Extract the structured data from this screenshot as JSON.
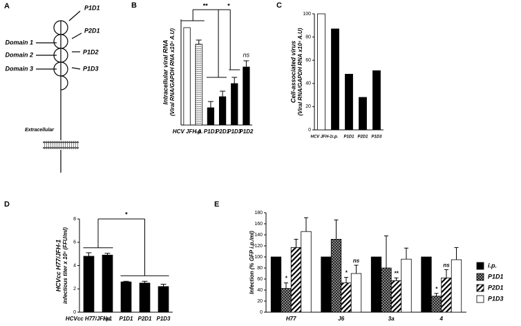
{
  "diagram": {
    "panel": "A",
    "receptors": [
      "P1D1",
      "P2D1",
      "P1D2",
      "P1D3"
    ],
    "domains": [
      "Domain 1",
      "Domain 2",
      "Domain 3"
    ],
    "membrane_label": "Extracellular"
  },
  "chart_data": [
    {
      "type": "bar",
      "panel": "B",
      "ylabel": [
        "Intracellular viral RNA",
        "(Viral RNA/GAPDH RNA x10⁴ A.U)"
      ],
      "categories": [
        "HCV JFH-1",
        "i.p.",
        "P1D1",
        "P2D1",
        "P1D3",
        "P1D2"
      ],
      "values": [
        141,
        117,
        25,
        41,
        60,
        84
      ],
      "errors": [
        0,
        6,
        9,
        8,
        9,
        9
      ],
      "colors": [
        "#ffffff",
        "#ffffff",
        "#000000",
        "#000000",
        "#000000",
        "#000000"
      ],
      "patterns": [
        null,
        "dots",
        null,
        null,
        null,
        null
      ],
      "ylim": [
        0,
        153
      ],
      "annotations": [
        "**",
        "*",
        "ns"
      ]
    },
    {
      "type": "bar",
      "panel": "C",
      "ylabel": [
        "Cell-associated virus",
        "(Viral RNA/GAPDH RNA x10⁴ A.U)"
      ],
      "categories": [
        "HCV JFH-1",
        "i.p.",
        "P1D1",
        "P2D1",
        "P1D3"
      ],
      "values": [
        100,
        87,
        48,
        28,
        51
      ],
      "colors": [
        "#ffffff",
        "#000000",
        "#000000",
        "#000000",
        "#000000"
      ],
      "ylim": [
        0,
        100
      ],
      "yticks": [
        0,
        20,
        40,
        60,
        80,
        100
      ]
    },
    {
      "type": "bar",
      "panel": "D",
      "ylabel": [
        "HCVcc H77/JFH-1",
        "infectious titer x 10⁵ (FFU/ml)"
      ],
      "categories": [
        "HCVcc H77/JFH-1",
        "i.p.",
        "P1D1",
        "P2D1",
        "P1D3"
      ],
      "values": [
        4.8,
        4.9,
        2.6,
        2.5,
        2.2
      ],
      "errors": [
        0.3,
        0.15,
        0.05,
        0.15,
        0.2
      ],
      "colors": [
        "#000000",
        "#000000",
        "#000000",
        "#000000",
        "#000000"
      ],
      "ylim": [
        0,
        8
      ],
      "yticks": [
        0,
        2,
        4,
        6,
        8
      ],
      "annotations": [
        "*"
      ]
    },
    {
      "type": "grouped_bar",
      "panel": "E",
      "ylabel": [
        "Infection (% GFP i.p./ml)"
      ],
      "categories": [
        "H77",
        "J6",
        "3a",
        "4"
      ],
      "series": [
        {
          "name": "i.p.",
          "color": "#000000",
          "values": [
            100,
            100,
            100,
            100
          ],
          "errors": [
            0,
            0,
            0,
            0
          ]
        },
        {
          "name": "P1D1",
          "color": "#000000",
          "pattern": "checker",
          "values": [
            43,
            132,
            80,
            29
          ],
          "errors": [
            10,
            35,
            58,
            5
          ]
        },
        {
          "name": "P2D1",
          "color": "#000000",
          "pattern": "hatch",
          "values": [
            117,
            53,
            57,
            62
          ],
          "errors": [
            15,
            10,
            5,
            15
          ]
        },
        {
          "name": "P1D3",
          "color": "#ffffff",
          "values": [
            146,
            70,
            96,
            95
          ],
          "errors": [
            25,
            15,
            20,
            22
          ]
        }
      ],
      "ylim": [
        0,
        180
      ],
      "yticks": [
        0,
        20,
        40,
        60,
        80,
        100,
        120,
        140,
        160,
        180
      ],
      "legend": "right",
      "annotations": [
        "*",
        "*",
        "ns",
        "**",
        "*",
        "ns"
      ]
    }
  ]
}
